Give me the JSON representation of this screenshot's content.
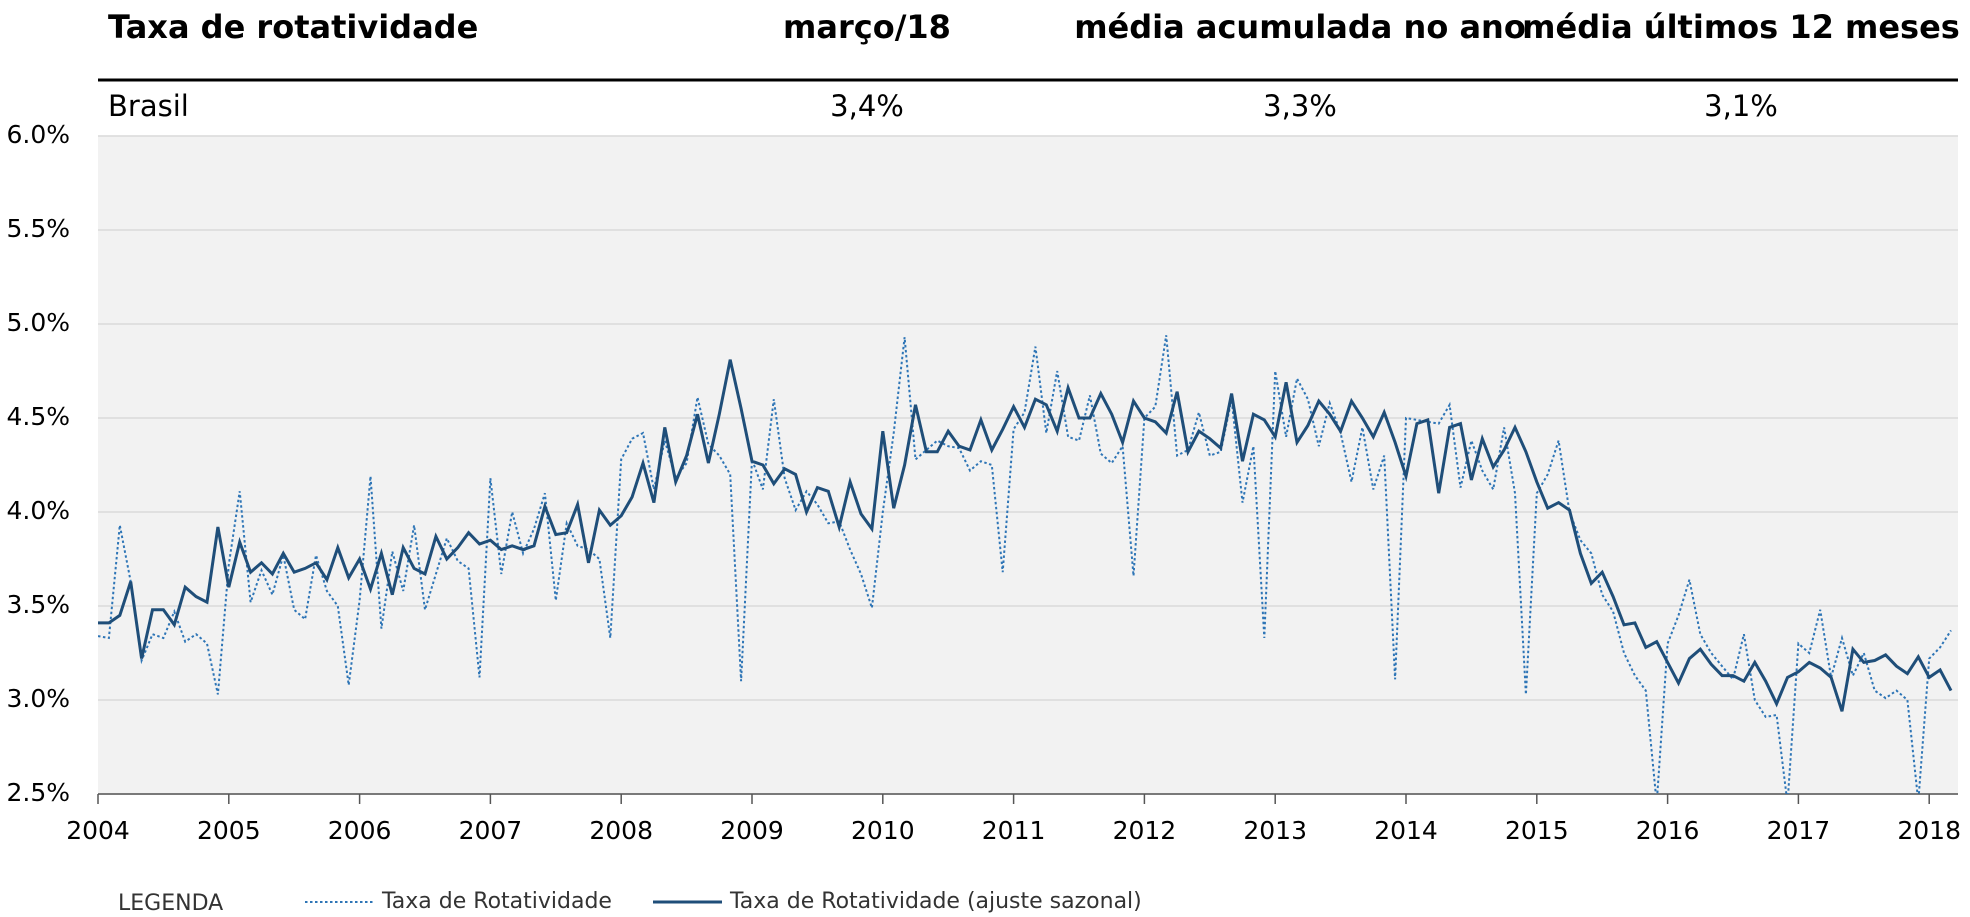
{
  "header": {
    "title": "Taxa de rotatividade",
    "columns": [
      "março/18",
      "média acumulada no ano",
      "média últimos 12 meses"
    ],
    "rows": [
      {
        "label": "Brasil",
        "values": [
          "3,4%",
          "3,3%",
          "3,1%"
        ]
      }
    ]
  },
  "chart_data": {
    "type": "line",
    "legend_title": "LEGENDA",
    "grid": true,
    "ylim": [
      2.5,
      6.0
    ],
    "yticks": [
      {
        "value": 2.5,
        "label": "2.5%"
      },
      {
        "value": 3.0,
        "label": "3.0%"
      },
      {
        "value": 3.5,
        "label": "3.5%"
      },
      {
        "value": 4.0,
        "label": "4.0%"
      },
      {
        "value": 4.5,
        "label": "4.5%"
      },
      {
        "value": 5.0,
        "label": "5.0%"
      },
      {
        "value": 5.5,
        "label": "5.5%"
      },
      {
        "value": 6.0,
        "label": "6.0%"
      }
    ],
    "categories": [
      "2004",
      null,
      null,
      null,
      null,
      null,
      null,
      null,
      null,
      null,
      null,
      null,
      "2005",
      null,
      null,
      null,
      null,
      null,
      null,
      null,
      null,
      null,
      null,
      null,
      "2006",
      null,
      null,
      null,
      null,
      null,
      null,
      null,
      null,
      null,
      null,
      null,
      "2007",
      null,
      null,
      null,
      null,
      null,
      null,
      null,
      null,
      null,
      null,
      null,
      "2008",
      null,
      null,
      null,
      null,
      null,
      null,
      null,
      null,
      null,
      null,
      null,
      "2009",
      null,
      null,
      null,
      null,
      null,
      null,
      null,
      null,
      null,
      null,
      null,
      "2010",
      null,
      null,
      null,
      null,
      null,
      null,
      null,
      null,
      null,
      null,
      null,
      "2011",
      null,
      null,
      null,
      null,
      null,
      null,
      null,
      null,
      null,
      null,
      null,
      "2012",
      null,
      null,
      null,
      null,
      null,
      null,
      null,
      null,
      null,
      null,
      null,
      "2013",
      null,
      null,
      null,
      null,
      null,
      null,
      null,
      null,
      null,
      null,
      null,
      "2014",
      null,
      null,
      null,
      null,
      null,
      null,
      null,
      null,
      null,
      null,
      null,
      "2015",
      null,
      null,
      null,
      null,
      null,
      null,
      null,
      null,
      null,
      null,
      null,
      "2016",
      null,
      null,
      null,
      null,
      null,
      null,
      null,
      null,
      null,
      null,
      null,
      "2017",
      null,
      null,
      null,
      null,
      null,
      null,
      null,
      null,
      null,
      null,
      null,
      "2018",
      null,
      null
    ],
    "series": [
      {
        "name": "Taxa de Rotatividade",
        "color": "#2e75b6",
        "line_style": "dotted",
        "values": [
          3.34,
          3.33,
          3.93,
          3.63,
          3.21,
          3.35,
          3.33,
          3.47,
          3.31,
          3.35,
          3.3,
          3.03,
          3.72,
          4.11,
          3.52,
          3.69,
          3.56,
          3.77,
          3.48,
          3.43,
          3.77,
          3.58,
          3.5,
          3.08,
          3.53,
          4.19,
          3.38,
          3.79,
          3.58,
          3.93,
          3.48,
          3.67,
          3.86,
          3.74,
          3.7,
          3.12,
          4.18,
          3.67,
          4.0,
          3.78,
          3.91,
          4.1,
          3.53,
          3.94,
          3.82,
          3.8,
          3.75,
          3.33,
          4.28,
          4.39,
          4.42,
          4.12,
          4.38,
          4.18,
          4.26,
          4.61,
          4.36,
          4.3,
          4.2,
          3.1,
          4.28,
          4.12,
          4.6,
          4.18,
          4.01,
          4.11,
          4.04,
          3.94,
          3.95,
          3.8,
          3.67,
          3.49,
          4.0,
          4.42,
          4.93,
          4.28,
          4.33,
          4.38,
          4.35,
          4.34,
          4.22,
          4.27,
          4.25,
          3.68,
          4.44,
          4.53,
          4.88,
          4.42,
          4.75,
          4.4,
          4.38,
          4.62,
          4.31,
          4.26,
          4.35,
          3.66,
          4.5,
          4.56,
          4.94,
          4.3,
          4.33,
          4.53,
          4.3,
          4.32,
          4.6,
          4.05,
          4.35,
          3.33,
          4.75,
          4.4,
          4.71,
          4.6,
          4.35,
          4.58,
          4.42,
          4.16,
          4.45,
          4.12,
          4.3,
          3.11,
          4.5,
          4.49,
          4.48,
          4.47,
          4.57,
          4.13,
          4.38,
          4.22,
          4.12,
          4.45,
          4.1,
          3.03,
          4.1,
          4.2,
          4.38,
          4.0,
          3.85,
          3.78,
          3.56,
          3.47,
          3.25,
          3.13,
          3.05,
          2.45,
          3.3,
          3.45,
          3.64,
          3.35,
          3.25,
          3.18,
          3.11,
          3.35,
          3.0,
          2.91,
          2.92,
          2.45,
          3.3,
          3.25,
          3.48,
          3.12,
          3.33,
          3.13,
          3.25,
          3.05,
          3.01,
          3.05,
          3.0,
          2.46,
          3.22,
          3.28,
          3.37
        ]
      },
      {
        "name": "Taxa de Rotatividade (ajuste sazonal)",
        "color": "#1f4e79",
        "line_style": "solid",
        "values": [
          3.41,
          3.41,
          3.45,
          3.63,
          3.22,
          3.48,
          3.48,
          3.4,
          3.6,
          3.55,
          3.52,
          3.92,
          3.6,
          3.84,
          3.68,
          3.73,
          3.67,
          3.78,
          3.68,
          3.7,
          3.73,
          3.64,
          3.81,
          3.65,
          3.75,
          3.59,
          3.78,
          3.56,
          3.81,
          3.7,
          3.67,
          3.87,
          3.75,
          3.81,
          3.89,
          3.83,
          3.85,
          3.8,
          3.82,
          3.8,
          3.82,
          4.03,
          3.88,
          3.89,
          4.04,
          3.73,
          4.01,
          3.93,
          3.98,
          4.08,
          4.26,
          4.05,
          4.45,
          4.16,
          4.3,
          4.52,
          4.26,
          4.52,
          4.81,
          4.55,
          4.27,
          4.25,
          4.15,
          4.23,
          4.2,
          4.0,
          4.13,
          4.11,
          3.92,
          4.16,
          3.99,
          3.91,
          4.43,
          4.02,
          4.25,
          4.57,
          4.32,
          4.32,
          4.43,
          4.35,
          4.33,
          4.49,
          4.33,
          4.44,
          4.56,
          4.45,
          4.6,
          4.57,
          4.43,
          4.66,
          4.5,
          4.5,
          4.63,
          4.52,
          4.37,
          4.59,
          4.5,
          4.48,
          4.42,
          4.64,
          4.32,
          4.43,
          4.39,
          4.34,
          4.63,
          4.27,
          4.52,
          4.49,
          4.4,
          4.69,
          4.37,
          4.46,
          4.59,
          4.52,
          4.43,
          4.59,
          4.5,
          4.4,
          4.53,
          4.37,
          4.19,
          4.47,
          4.49,
          4.1,
          4.45,
          4.47,
          4.17,
          4.39,
          4.24,
          4.33,
          4.45,
          4.32,
          4.16,
          4.02,
          4.05,
          4.01,
          3.78,
          3.62,
          3.68,
          3.55,
          3.4,
          3.41,
          3.28,
          3.31,
          3.2,
          3.09,
          3.22,
          3.27,
          3.19,
          3.13,
          3.13,
          3.1,
          3.2,
          3.1,
          2.98,
          3.12,
          3.15,
          3.2,
          3.17,
          3.12,
          2.94,
          3.27,
          3.2,
          3.21,
          3.24,
          3.18,
          3.14,
          3.23,
          3.12,
          3.16,
          3.05
        ]
      }
    ]
  }
}
